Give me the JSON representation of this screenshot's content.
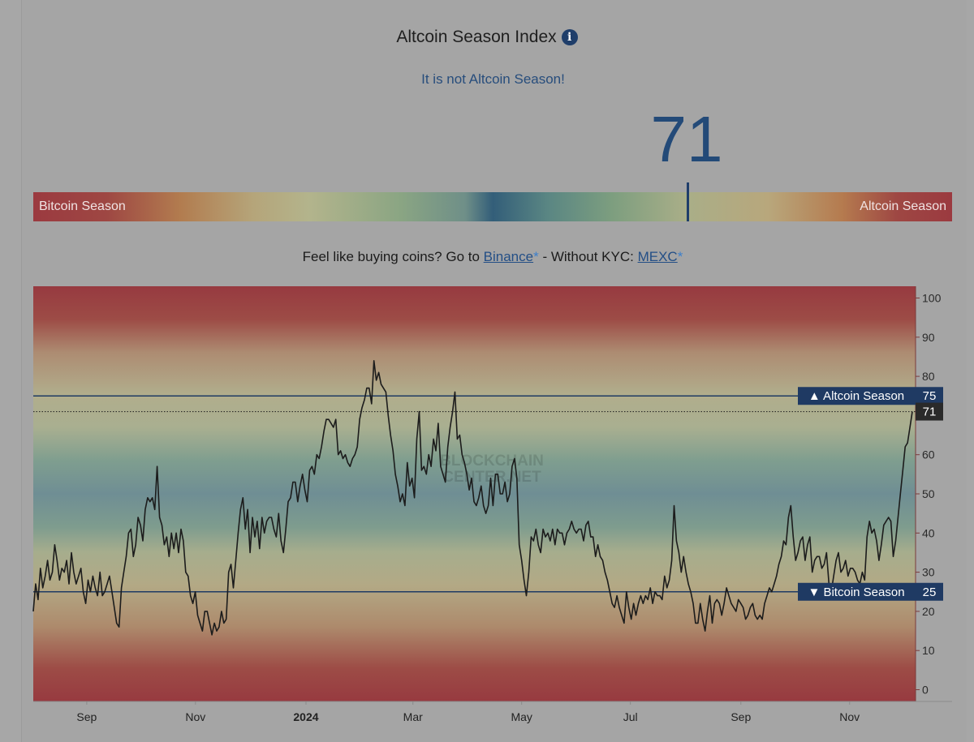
{
  "header": {
    "title": "Altcoin Season Index",
    "info_icon": "info-icon",
    "status": "It is not Altcoin Season!",
    "index_value": "71"
  },
  "gauge": {
    "left_label": "Bitcoin Season",
    "right_label": "Altcoin Season",
    "value": 71
  },
  "promo": {
    "prefix": "Feel like buying coins? Go to ",
    "binance_label": "Binance",
    "star": "*",
    "middle": " - Without KYC: ",
    "mexc_label": "MEXC"
  },
  "chart_data": {
    "type": "line",
    "watermark_line1": "BLOCKCHAIN",
    "watermark_line2": "CENTER.NET",
    "ylim": [
      -3,
      103
    ],
    "yticks": [
      0,
      10,
      20,
      30,
      40,
      50,
      60,
      70,
      80,
      90,
      100
    ],
    "x_ticks": [
      {
        "label": "Sep",
        "day": 30,
        "bold": false
      },
      {
        "label": "Nov",
        "day": 91,
        "bold": false
      },
      {
        "label": "2024",
        "day": 153,
        "bold": true
      },
      {
        "label": "Mar",
        "day": 213,
        "bold": false
      },
      {
        "label": "May",
        "day": 274,
        "bold": false
      },
      {
        "label": "Jul",
        "day": 335,
        "bold": false
      },
      {
        "label": "Sep",
        "day": 397,
        "bold": false
      },
      {
        "label": "Nov",
        "day": 458,
        "bold": false
      }
    ],
    "x_range_days": [
      0,
      495
    ],
    "thresholds": [
      {
        "label": "▲ Altcoin Season",
        "value": 75
      },
      {
        "label": "▼ Bitcoin Season",
        "value": 25
      }
    ],
    "current": {
      "label": "71",
      "value": 71
    },
    "series": [
      {
        "values": [
          20,
          27,
          23,
          31,
          26,
          29,
          33,
          28,
          30,
          37,
          33,
          28,
          31,
          30,
          33,
          27,
          35,
          30,
          27,
          29,
          31,
          25,
          22,
          28,
          25,
          29,
          26,
          24,
          30,
          24,
          25,
          27,
          29,
          25,
          21,
          17,
          16,
          26,
          30,
          34,
          40,
          41,
          34,
          37,
          44,
          42,
          38,
          46,
          49,
          48,
          49,
          46,
          57,
          44,
          42,
          37,
          39,
          34,
          40,
          36,
          40,
          35,
          41,
          38,
          30,
          29,
          24,
          22,
          25,
          19,
          17,
          15,
          20,
          20,
          17,
          14,
          17,
          15,
          16,
          20,
          17,
          18,
          30,
          32,
          26,
          33,
          40,
          46,
          49,
          41,
          46,
          35,
          44,
          39,
          43,
          36,
          44,
          40,
          43,
          44,
          44,
          41,
          39,
          45,
          38,
          35,
          41,
          48,
          49,
          53,
          53,
          48,
          52,
          55,
          51,
          48,
          56,
          57,
          55,
          60,
          59,
          62,
          66,
          69,
          69,
          68,
          67,
          69,
          60,
          61,
          59,
          60,
          58,
          57,
          59,
          60,
          62,
          69,
          72,
          74,
          77,
          77,
          73,
          84,
          79,
          81,
          78,
          77,
          76,
          70,
          65,
          61,
          55,
          52,
          48,
          50,
          47,
          58,
          52,
          54,
          49,
          64,
          71,
          56,
          57,
          55,
          60,
          57,
          64,
          61,
          68,
          57,
          55,
          53,
          62,
          67,
          71,
          76,
          64,
          65,
          60,
          58,
          55,
          51,
          54,
          48,
          47,
          49,
          52,
          47,
          45,
          47,
          54,
          47,
          55,
          55,
          50,
          50,
          53,
          48,
          50,
          57,
          59,
          54,
          37,
          33,
          28,
          24,
          30,
          39,
          38,
          41,
          37,
          35,
          41,
          39,
          40,
          38,
          41,
          37,
          41,
          40,
          40,
          37,
          40,
          41,
          43,
          41,
          40,
          41,
          41,
          38,
          42,
          43,
          39,
          39,
          34,
          37,
          34,
          33,
          30,
          28,
          25,
          22,
          21,
          24,
          21,
          19,
          17,
          25,
          21,
          18,
          22,
          19,
          22,
          24,
          22,
          24,
          23,
          26,
          22,
          25,
          24,
          24,
          23,
          29,
          26,
          28,
          33,
          47,
          38,
          35,
          30,
          34,
          30,
          27,
          25,
          22,
          17,
          17,
          22,
          18,
          15,
          20,
          24,
          17,
          22,
          23,
          22,
          19,
          22,
          26,
          24,
          22,
          21,
          20,
          23,
          22,
          21,
          18,
          19,
          21,
          22,
          19,
          18,
          19,
          18,
          22,
          24,
          26,
          25,
          27,
          29,
          32,
          34,
          38,
          37,
          44,
          47,
          39,
          33,
          35,
          38,
          39,
          33,
          37,
          39,
          30,
          33,
          34,
          34,
          31,
          32,
          35,
          27,
          25,
          29,
          33,
          35,
          30,
          31,
          33,
          29,
          31,
          31,
          30,
          28,
          27,
          30,
          28,
          39,
          43,
          40,
          41,
          38,
          33,
          37,
          42,
          43,
          44,
          43,
          34,
          38,
          44,
          50,
          56,
          62,
          63,
          67,
          71
        ]
      }
    ]
  }
}
